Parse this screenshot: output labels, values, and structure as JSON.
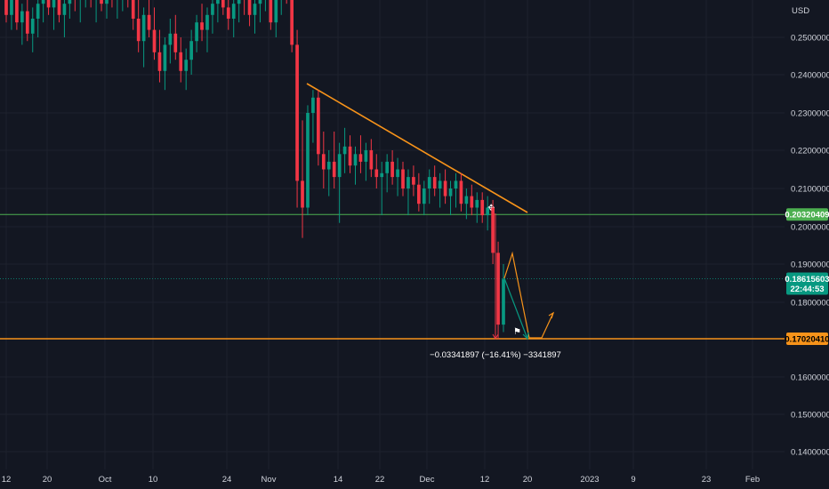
{
  "chart_data": {
    "type": "candlestick",
    "currency": "USD",
    "y_ticks": [
      "0.25000000",
      "0.24000000",
      "0.23000000",
      "0.22000000",
      "0.21000000",
      "0.20000000",
      "0.19000000",
      "0.18000000",
      "0.16000000",
      "0.15000000",
      "0.14000000"
    ],
    "y_tick_values": [
      0.25,
      0.24,
      0.23,
      0.22,
      0.21,
      0.2,
      0.19,
      0.18,
      0.16,
      0.15,
      0.14
    ],
    "ylim": [
      0.137,
      0.263
    ],
    "x_ticks": [
      "12",
      "20",
      "Oct",
      "10",
      "24",
      "Nov",
      "14",
      "22",
      "Dec",
      "12",
      "20",
      "2023",
      "9",
      "23",
      "Feb"
    ],
    "levels": {
      "green_line": {
        "value": 0.20320409,
        "label": "0.20320409",
        "color": "#4caf50"
      },
      "current_price": {
        "value": 0.18615603,
        "label": "0.18615603",
        "countdown": "22:44:53",
        "color": "#089981"
      },
      "orange_line": {
        "value": 0.1702041,
        "label": "0.17020410",
        "color": "#f7931a"
      }
    },
    "measurement_label": "−0.03341897 (−16.41%) −3341897",
    "colors": {
      "up": "#089981",
      "down": "#f23645",
      "trend": "#f7931a",
      "background": "#131722"
    },
    "candles": [
      [
        0.262,
        0.266,
        0.254,
        0.256
      ],
      [
        0.256,
        0.262,
        0.252,
        0.26
      ],
      [
        0.26,
        0.264,
        0.252,
        0.254
      ],
      [
        0.254,
        0.259,
        0.248,
        0.257
      ],
      [
        0.257,
        0.263,
        0.249,
        0.251
      ],
      [
        0.251,
        0.258,
        0.246,
        0.255
      ],
      [
        0.255,
        0.262,
        0.25,
        0.259
      ],
      [
        0.259,
        0.266,
        0.254,
        0.262
      ],
      [
        0.262,
        0.266,
        0.256,
        0.258
      ],
      [
        0.258,
        0.262,
        0.252,
        0.26
      ],
      [
        0.26,
        0.264,
        0.254,
        0.256
      ],
      [
        0.256,
        0.262,
        0.25,
        0.259
      ],
      [
        0.259,
        0.265,
        0.255,
        0.262
      ],
      [
        0.262,
        0.266,
        0.257,
        0.26
      ],
      [
        0.26,
        0.264,
        0.254,
        0.262
      ],
      [
        0.262,
        0.266,
        0.258,
        0.264
      ],
      [
        0.264,
        0.266,
        0.258,
        0.26
      ],
      [
        0.26,
        0.264,
        0.254,
        0.262
      ],
      [
        0.262,
        0.266,
        0.257,
        0.259
      ],
      [
        0.259,
        0.264,
        0.255,
        0.263
      ],
      [
        0.263,
        0.266,
        0.258,
        0.26
      ],
      [
        0.26,
        0.265,
        0.255,
        0.262
      ],
      [
        0.262,
        0.266,
        0.257,
        0.264
      ],
      [
        0.264,
        0.266,
        0.258,
        0.26
      ],
      [
        0.26,
        0.264,
        0.252,
        0.255
      ],
      [
        0.255,
        0.26,
        0.246,
        0.249
      ],
      [
        0.249,
        0.258,
        0.242,
        0.256
      ],
      [
        0.256,
        0.262,
        0.25,
        0.252
      ],
      [
        0.252,
        0.258,
        0.244,
        0.246
      ],
      [
        0.246,
        0.252,
        0.238,
        0.241
      ],
      [
        0.241,
        0.25,
        0.236,
        0.248
      ],
      [
        0.248,
        0.255,
        0.243,
        0.251
      ],
      [
        0.251,
        0.256,
        0.244,
        0.246
      ],
      [
        0.246,
        0.25,
        0.238,
        0.241
      ],
      [
        0.241,
        0.247,
        0.236,
        0.244
      ],
      [
        0.244,
        0.252,
        0.24,
        0.249
      ],
      [
        0.249,
        0.256,
        0.246,
        0.254
      ],
      [
        0.254,
        0.259,
        0.249,
        0.252
      ],
      [
        0.252,
        0.258,
        0.246,
        0.256
      ],
      [
        0.256,
        0.262,
        0.251,
        0.259
      ],
      [
        0.259,
        0.264,
        0.254,
        0.261
      ],
      [
        0.261,
        0.265,
        0.256,
        0.258
      ],
      [
        0.258,
        0.262,
        0.252,
        0.255
      ],
      [
        0.255,
        0.261,
        0.25,
        0.259
      ],
      [
        0.259,
        0.264,
        0.254,
        0.262
      ],
      [
        0.262,
        0.265,
        0.256,
        0.26
      ],
      [
        0.26,
        0.264,
        0.253,
        0.256
      ],
      [
        0.256,
        0.261,
        0.251,
        0.259
      ],
      [
        0.259,
        0.263,
        0.254,
        0.261
      ],
      [
        0.261,
        0.265,
        0.257,
        0.262
      ],
      [
        0.262,
        0.265,
        0.252,
        0.254
      ],
      [
        0.254,
        0.262,
        0.25,
        0.261
      ],
      [
        0.261,
        0.265,
        0.256,
        0.264
      ],
      [
        0.264,
        0.266,
        0.259,
        0.262
      ],
      [
        0.262,
        0.264,
        0.246,
        0.248
      ],
      [
        0.248,
        0.252,
        0.205,
        0.212
      ],
      [
        0.212,
        0.228,
        0.197,
        0.205
      ],
      [
        0.205,
        0.232,
        0.203,
        0.23
      ],
      [
        0.23,
        0.236,
        0.222,
        0.234
      ],
      [
        0.234,
        0.236,
        0.216,
        0.219
      ],
      [
        0.219,
        0.225,
        0.21,
        0.215
      ],
      [
        0.215,
        0.22,
        0.208,
        0.217
      ],
      [
        0.217,
        0.225,
        0.21,
        0.213
      ],
      [
        0.213,
        0.222,
        0.201,
        0.219
      ],
      [
        0.219,
        0.226,
        0.214,
        0.221
      ],
      [
        0.221,
        0.224,
        0.214,
        0.216
      ],
      [
        0.216,
        0.221,
        0.211,
        0.219
      ],
      [
        0.219,
        0.224,
        0.214,
        0.217
      ],
      [
        0.217,
        0.222,
        0.212,
        0.22
      ],
      [
        0.22,
        0.223,
        0.213,
        0.215
      ],
      [
        0.215,
        0.219,
        0.21,
        0.213
      ],
      [
        0.213,
        0.217,
        0.203,
        0.214
      ],
      [
        0.214,
        0.219,
        0.209,
        0.217
      ],
      [
        0.217,
        0.22,
        0.211,
        0.213
      ],
      [
        0.213,
        0.218,
        0.208,
        0.215
      ],
      [
        0.215,
        0.217,
        0.208,
        0.21
      ],
      [
        0.21,
        0.215,
        0.203,
        0.213
      ],
      [
        0.213,
        0.216,
        0.208,
        0.211
      ],
      [
        0.211,
        0.214,
        0.204,
        0.206
      ],
      [
        0.206,
        0.212,
        0.203,
        0.21
      ],
      [
        0.21,
        0.215,
        0.206,
        0.213
      ],
      [
        0.213,
        0.216,
        0.208,
        0.21
      ],
      [
        0.21,
        0.214,
        0.205,
        0.212
      ],
      [
        0.212,
        0.215,
        0.206,
        0.208
      ],
      [
        0.208,
        0.212,
        0.203,
        0.21
      ],
      [
        0.21,
        0.214,
        0.205,
        0.212
      ],
      [
        0.212,
        0.214,
        0.204,
        0.206
      ],
      [
        0.206,
        0.21,
        0.202,
        0.208
      ],
      [
        0.208,
        0.211,
        0.203,
        0.205
      ],
      [
        0.205,
        0.209,
        0.201,
        0.207
      ],
      [
        0.207,
        0.209,
        0.201,
        0.203
      ],
      [
        0.203,
        0.208,
        0.199,
        0.205
      ],
      [
        0.205,
        0.207,
        0.19,
        0.193
      ],
      [
        0.193,
        0.196,
        0.17,
        0.174
      ],
      [
        0.174,
        0.19,
        0.172,
        0.186
      ]
    ]
  }
}
